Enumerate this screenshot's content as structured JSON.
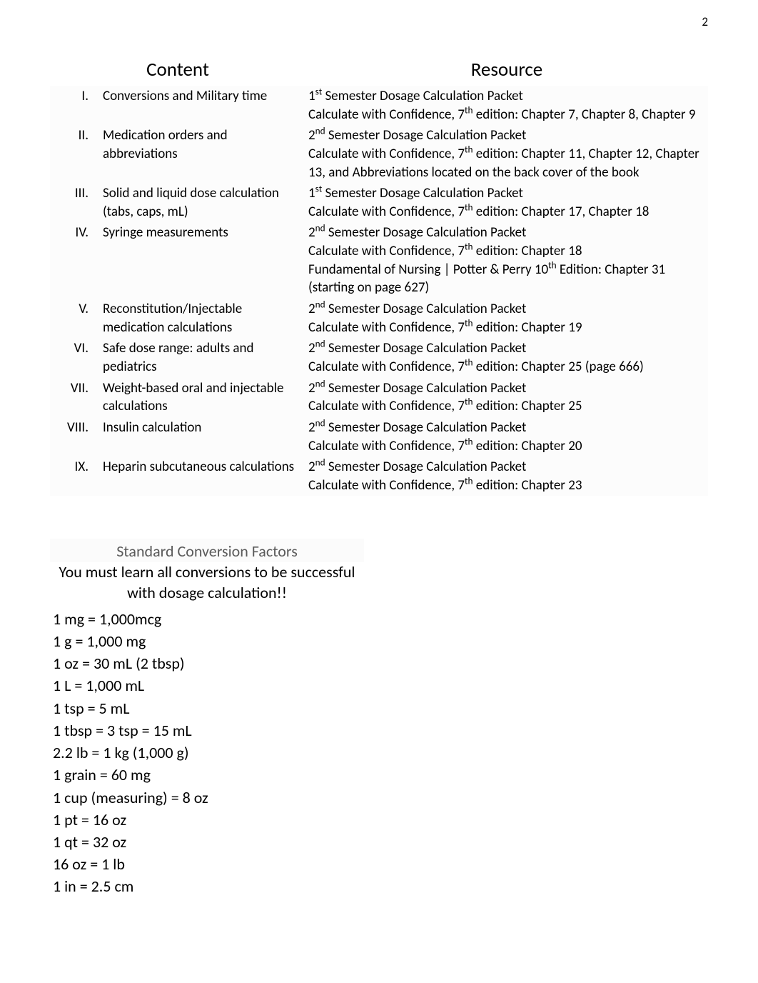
{
  "page_number": "2",
  "headers": {
    "content": "Content",
    "resource": "Resource"
  },
  "rows": [
    {
      "num": "I.",
      "topic": "Conversions and Military time",
      "resources": [
        "1<sup>st</sup> Semester Dosage Calculation Packet",
        "Calculate with Confidence, 7<sup>th</sup> edition:  Chapter 7, Chapter 8, Chapter 9"
      ]
    },
    {
      "num": "II.",
      "topic": "Medication orders and abbreviations",
      "resources": [
        "2<sup>nd</sup> Semester Dosage Calculation Packet",
        "Calculate with Confidence, 7<sup>th</sup> edition:  Chapter 11,  Chapter 12, Chapter 13, and Abbreviations located on the back cover of the book"
      ]
    },
    {
      "num": "III.",
      "topic": "Solid and liquid dose calculation (tabs, caps, mL)",
      "resources": [
        "1<sup>st</sup> Semester Dosage Calculation Packet",
        "Calculate with Confidence, 7<sup>th</sup> edition:  Chapter 17, Chapter 18"
      ]
    },
    {
      "num": "IV.",
      "topic": "Syringe measurements",
      "resources": [
        "2<sup>nd</sup> Semester Dosage Calculation Packet",
        "Calculate with Confidence, 7<sup>th</sup> edition:  Chapter 18",
        "Fundamental of Nursing | Potter & Perry 10<sup>th</sup> Edition:  Chapter 31 (starting on page 627)"
      ]
    },
    {
      "num": "V.",
      "topic": "Reconstitution/Injectable medication calculations",
      "resources": [
        "2<sup>nd</sup> Semester Dosage Calculation Packet",
        "Calculate with Confidence, 7<sup>th</sup> edition:  Chapter 19"
      ]
    },
    {
      "num": "VI.",
      "topic": "Safe dose range:  adults and pediatrics",
      "resources": [
        "2<sup>nd</sup> Semester Dosage Calculation Packet",
        "Calculate with Confidence, 7<sup>th</sup> edition:  Chapter 25 (page 666)"
      ]
    },
    {
      "num": "VII.",
      "topic": "Weight-based oral and injectable calculations",
      "resources": [
        "2<sup>nd</sup> Semester Dosage Calculation Packet",
        "Calculate with Confidence, 7<sup>th</sup> edition:  Chapter 25"
      ]
    },
    {
      "num": "VIII.",
      "topic": "Insulin calculation",
      "resources": [
        "2<sup>nd</sup> Semester Dosage Calculation Packet",
        "Calculate with Confidence, 7<sup>th</sup> edition:  Chapter 20"
      ]
    },
    {
      "num": "IX.",
      "topic": "Heparin subcutaneous calculations",
      "resources": [
        "2<sup>nd</sup> Semester Dosage Calculation Packet",
        "Calculate with Confidence, 7<sup>th</sup> edition:  Chapter 23"
      ]
    }
  ],
  "conversion": {
    "title": "Standard Conversion Factors",
    "subtitle": "You must learn all conversions to be successful with dosage calculation!!",
    "items": [
      "1 mg = 1,000mcg",
      "1 g = 1,000 mg",
      "1 oz = 30 mL (2 tbsp)",
      "1 L = 1,000 mL",
      "1 tsp = 5 mL",
      "1 tbsp =  3 tsp = 15 mL",
      "2.2 lb = 1 kg (1,000 g)",
      "1 grain = 60 mg",
      "1 cup (measuring) = 8 oz",
      "1 pt = 16 oz",
      "1 qt = 32 oz",
      "16 oz = 1 lb",
      "1 in = 2.5 cm"
    ]
  },
  "style": {
    "page_bg": "#ffffff",
    "text_color": "#000000",
    "shade_bg": "#fcfcfc",
    "conv_header_bg": "#fbfbfb",
    "conv_header_color": "#5b5b5b",
    "body_fontsize": 19,
    "header_fontsize": 27,
    "conv_fontsize": 22
  }
}
